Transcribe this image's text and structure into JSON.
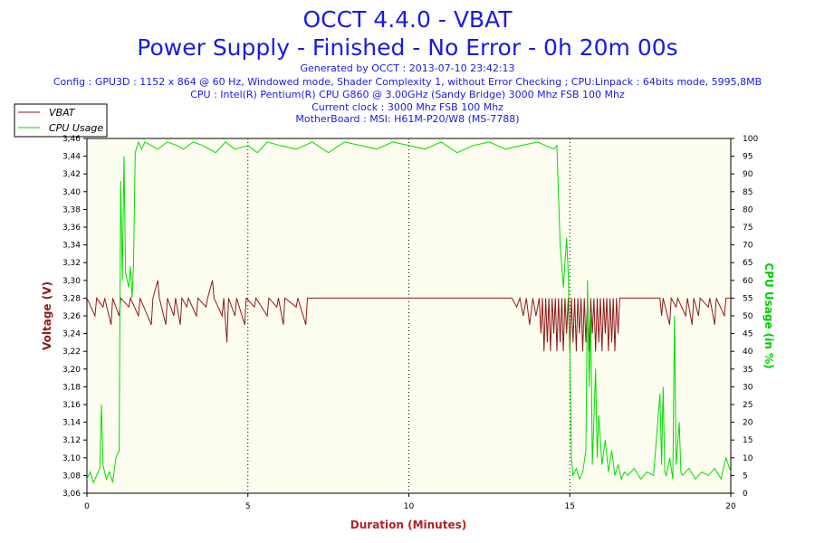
{
  "header": {
    "title": "OCCT 4.4.0 - VBAT",
    "subtitle": "Power Supply - Finished - No Error - 0h 20m 00s",
    "info_lines": [
      "Generated by OCCT : 2013-07-10 23:42:13",
      "Config : GPU3D : 1152 x 864 @ 60 Hz, Windowed mode, Shader Complexity 1, without Error Checking ; CPU:Linpack : 64bits mode, 5995,8MB",
      "CPU : Intel(R) Pentium(R) CPU G860 @ 3.00GHz (Sandy Bridge) 3000 Mhz FSB 100 Mhz",
      "Current clock : 3000 Mhz FSB 100 Mhz",
      "MotherBoard : MSI: H61M-P20/W8 (MS-7788)"
    ]
  },
  "legend": {
    "items": [
      {
        "label": "VBAT",
        "color": "#8b1a1a"
      },
      {
        "label": "CPU Usage",
        "color": "#00dd00"
      }
    ]
  },
  "chart_data": {
    "type": "line",
    "title": "OCCT 4.4.0 - VBAT",
    "xlabel": "Duration (Minutes)",
    "ylabel_left": "Voltage (V)",
    "ylabel_right": "CPU Usage (in %)",
    "xlim": [
      0,
      20
    ],
    "x_ticks": [
      0,
      5,
      10,
      15,
      20
    ],
    "ylim_left": [
      3.06,
      3.46
    ],
    "y_ticks_left": [
      "3,06",
      "3,08",
      "3,10",
      "3,12",
      "3,14",
      "3,16",
      "3,18",
      "3,20",
      "3,22",
      "3,24",
      "3,26",
      "3,28",
      "3,30",
      "3,32",
      "3,34",
      "3,36",
      "3,38",
      "3,40",
      "3,42",
      "3,44",
      "3,46"
    ],
    "ylim_right": [
      0,
      100
    ],
    "y_ticks_right": [
      0,
      5,
      10,
      15,
      20,
      25,
      30,
      35,
      40,
      45,
      50,
      55,
      60,
      65,
      70,
      75,
      80,
      85,
      90,
      95,
      100
    ],
    "grid": "dotted-vertical",
    "series": [
      {
        "name": "VBAT",
        "axis": "left",
        "color": "#8b1a1a",
        "baseline": 3.28,
        "points": [
          [
            0.0,
            3.28
          ],
          [
            0.25,
            3.26
          ],
          [
            0.3,
            3.28
          ],
          [
            0.5,
            3.27
          ],
          [
            0.55,
            3.28
          ],
          [
            0.75,
            3.25
          ],
          [
            0.8,
            3.28
          ],
          [
            1.0,
            3.26
          ],
          [
            1.05,
            3.28
          ],
          [
            1.3,
            3.27
          ],
          [
            1.35,
            3.28
          ],
          [
            1.6,
            3.26
          ],
          [
            1.65,
            3.28
          ],
          [
            2.0,
            3.25
          ],
          [
            2.05,
            3.28
          ],
          [
            2.2,
            3.3
          ],
          [
            2.25,
            3.28
          ],
          [
            2.45,
            3.25
          ],
          [
            2.5,
            3.28
          ],
          [
            2.7,
            3.26
          ],
          [
            2.75,
            3.28
          ],
          [
            2.9,
            3.25
          ],
          [
            2.95,
            3.28
          ],
          [
            3.1,
            3.27
          ],
          [
            3.15,
            3.28
          ],
          [
            3.4,
            3.26
          ],
          [
            3.45,
            3.28
          ],
          [
            3.7,
            3.27
          ],
          [
            3.75,
            3.28
          ],
          [
            3.9,
            3.3
          ],
          [
            3.95,
            3.28
          ],
          [
            4.2,
            3.26
          ],
          [
            4.25,
            3.28
          ],
          [
            4.35,
            3.23
          ],
          [
            4.4,
            3.28
          ],
          [
            4.6,
            3.26
          ],
          [
            4.65,
            3.28
          ],
          [
            4.9,
            3.25
          ],
          [
            4.95,
            3.28
          ],
          [
            5.2,
            3.27
          ],
          [
            5.25,
            3.28
          ],
          [
            5.6,
            3.26
          ],
          [
            5.65,
            3.28
          ],
          [
            5.9,
            3.27
          ],
          [
            5.95,
            3.28
          ],
          [
            6.1,
            3.25
          ],
          [
            6.15,
            3.28
          ],
          [
            6.5,
            3.27
          ],
          [
            6.55,
            3.28
          ],
          [
            6.8,
            3.25
          ],
          [
            6.85,
            3.28
          ],
          [
            7.0,
            3.28
          ],
          [
            8.0,
            3.28
          ],
          [
            10.0,
            3.28
          ],
          [
            12.0,
            3.28
          ],
          [
            13.0,
            3.28
          ],
          [
            13.2,
            3.28
          ],
          [
            13.35,
            3.27
          ],
          [
            13.45,
            3.28
          ],
          [
            13.55,
            3.26
          ],
          [
            13.65,
            3.28
          ],
          [
            13.75,
            3.25
          ],
          [
            13.85,
            3.28
          ],
          [
            13.95,
            3.26
          ],
          [
            14.05,
            3.28
          ],
          [
            14.1,
            3.24
          ],
          [
            14.15,
            3.28
          ],
          [
            14.2,
            3.22
          ],
          [
            14.25,
            3.28
          ],
          [
            14.3,
            3.23
          ],
          [
            14.35,
            3.28
          ],
          [
            14.4,
            3.22
          ],
          [
            14.45,
            3.28
          ],
          [
            14.5,
            3.24
          ],
          [
            14.55,
            3.28
          ],
          [
            14.6,
            3.22
          ],
          [
            14.65,
            3.28
          ],
          [
            14.7,
            3.23
          ],
          [
            14.75,
            3.28
          ],
          [
            14.8,
            3.22
          ],
          [
            14.85,
            3.28
          ],
          [
            14.9,
            3.24
          ],
          [
            14.95,
            3.28
          ],
          [
            15.0,
            3.22
          ],
          [
            15.05,
            3.28
          ],
          [
            15.1,
            3.23
          ],
          [
            15.15,
            3.28
          ],
          [
            15.2,
            3.22
          ],
          [
            15.25,
            3.28
          ],
          [
            15.3,
            3.24
          ],
          [
            15.35,
            3.28
          ],
          [
            15.4,
            3.22
          ],
          [
            15.45,
            3.28
          ],
          [
            15.5,
            3.23
          ],
          [
            15.55,
            3.28
          ],
          [
            15.6,
            3.22
          ],
          [
            15.65,
            3.28
          ],
          [
            15.7,
            3.24
          ],
          [
            15.75,
            3.28
          ],
          [
            15.8,
            3.22
          ],
          [
            15.85,
            3.28
          ],
          [
            15.9,
            3.23
          ],
          [
            15.95,
            3.28
          ],
          [
            16.0,
            3.22
          ],
          [
            16.05,
            3.28
          ],
          [
            16.1,
            3.24
          ],
          [
            16.15,
            3.28
          ],
          [
            16.2,
            3.22
          ],
          [
            16.25,
            3.28
          ],
          [
            16.3,
            3.23
          ],
          [
            16.35,
            3.28
          ],
          [
            16.4,
            3.22
          ],
          [
            16.45,
            3.28
          ],
          [
            16.5,
            3.24
          ],
          [
            16.55,
            3.28
          ],
          [
            16.6,
            3.28
          ],
          [
            17.0,
            3.28
          ],
          [
            17.8,
            3.28
          ],
          [
            17.85,
            3.26
          ],
          [
            17.9,
            3.28
          ],
          [
            18.1,
            3.25
          ],
          [
            18.15,
            3.28
          ],
          [
            18.3,
            3.27
          ],
          [
            18.35,
            3.28
          ],
          [
            18.6,
            3.26
          ],
          [
            18.65,
            3.28
          ],
          [
            18.8,
            3.25
          ],
          [
            18.85,
            3.28
          ],
          [
            19.0,
            3.26
          ],
          [
            19.05,
            3.28
          ],
          [
            19.3,
            3.27
          ],
          [
            19.35,
            3.28
          ],
          [
            19.5,
            3.25
          ],
          [
            19.55,
            3.28
          ],
          [
            19.8,
            3.26
          ],
          [
            19.85,
            3.28
          ],
          [
            20.0,
            3.28
          ]
        ]
      },
      {
        "name": "CPU Usage",
        "axis": "right",
        "color": "#00dd00",
        "points": [
          [
            0.0,
            4
          ],
          [
            0.1,
            6
          ],
          [
            0.2,
            3
          ],
          [
            0.3,
            5
          ],
          [
            0.4,
            7
          ],
          [
            0.45,
            25
          ],
          [
            0.5,
            8
          ],
          [
            0.6,
            4
          ],
          [
            0.7,
            6
          ],
          [
            0.8,
            3
          ],
          [
            0.9,
            10
          ],
          [
            1.0,
            12
          ],
          [
            1.05,
            88
          ],
          [
            1.1,
            60
          ],
          [
            1.15,
            95
          ],
          [
            1.2,
            62
          ],
          [
            1.3,
            58
          ],
          [
            1.35,
            64
          ],
          [
            1.4,
            55
          ],
          [
            1.45,
            65
          ],
          [
            1.5,
            96
          ],
          [
            1.6,
            99
          ],
          [
            1.7,
            97
          ],
          [
            1.8,
            99
          ],
          [
            2.0,
            98
          ],
          [
            2.2,
            97
          ],
          [
            2.5,
            99
          ],
          [
            2.8,
            98
          ],
          [
            3.0,
            97
          ],
          [
            3.3,
            99
          ],
          [
            3.6,
            98
          ],
          [
            4.0,
            96
          ],
          [
            4.3,
            99
          ],
          [
            4.6,
            97
          ],
          [
            5.0,
            98
          ],
          [
            5.3,
            96
          ],
          [
            5.6,
            99
          ],
          [
            6.0,
            98
          ],
          [
            6.5,
            97
          ],
          [
            7.0,
            99
          ],
          [
            7.5,
            96
          ],
          [
            8.0,
            99
          ],
          [
            8.5,
            98
          ],
          [
            9.0,
            97
          ],
          [
            9.5,
            99
          ],
          [
            10.0,
            98
          ],
          [
            10.5,
            97
          ],
          [
            11.0,
            99
          ],
          [
            11.5,
            96
          ],
          [
            12.0,
            98
          ],
          [
            12.5,
            99
          ],
          [
            13.0,
            97
          ],
          [
            13.5,
            98
          ],
          [
            14.0,
            99
          ],
          [
            14.5,
            97
          ],
          [
            14.6,
            98
          ],
          [
            14.7,
            70
          ],
          [
            14.8,
            58
          ],
          [
            14.9,
            72
          ],
          [
            14.95,
            62
          ],
          [
            15.0,
            40
          ],
          [
            15.05,
            10
          ],
          [
            15.1,
            5
          ],
          [
            15.2,
            7
          ],
          [
            15.3,
            4
          ],
          [
            15.4,
            6
          ],
          [
            15.5,
            12
          ],
          [
            15.55,
            60
          ],
          [
            15.6,
            30
          ],
          [
            15.65,
            50
          ],
          [
            15.7,
            8
          ],
          [
            15.8,
            35
          ],
          [
            15.85,
            10
          ],
          [
            15.9,
            22
          ],
          [
            16.0,
            8
          ],
          [
            16.1,
            15
          ],
          [
            16.2,
            6
          ],
          [
            16.3,
            12
          ],
          [
            16.4,
            5
          ],
          [
            16.5,
            8
          ],
          [
            16.6,
            4
          ],
          [
            16.7,
            6
          ],
          [
            16.8,
            5
          ],
          [
            17.0,
            7
          ],
          [
            17.2,
            4
          ],
          [
            17.4,
            6
          ],
          [
            17.6,
            5
          ],
          [
            17.8,
            28
          ],
          [
            17.85,
            8
          ],
          [
            17.9,
            30
          ],
          [
            17.95,
            6
          ],
          [
            18.0,
            5
          ],
          [
            18.1,
            10
          ],
          [
            18.2,
            4
          ],
          [
            18.25,
            50
          ],
          [
            18.3,
            8
          ],
          [
            18.4,
            20
          ],
          [
            18.45,
            6
          ],
          [
            18.5,
            5
          ],
          [
            18.7,
            7
          ],
          [
            18.9,
            4
          ],
          [
            19.1,
            6
          ],
          [
            19.3,
            5
          ],
          [
            19.5,
            7
          ],
          [
            19.7,
            4
          ],
          [
            19.85,
            10
          ],
          [
            20.0,
            6
          ]
        ]
      }
    ]
  }
}
